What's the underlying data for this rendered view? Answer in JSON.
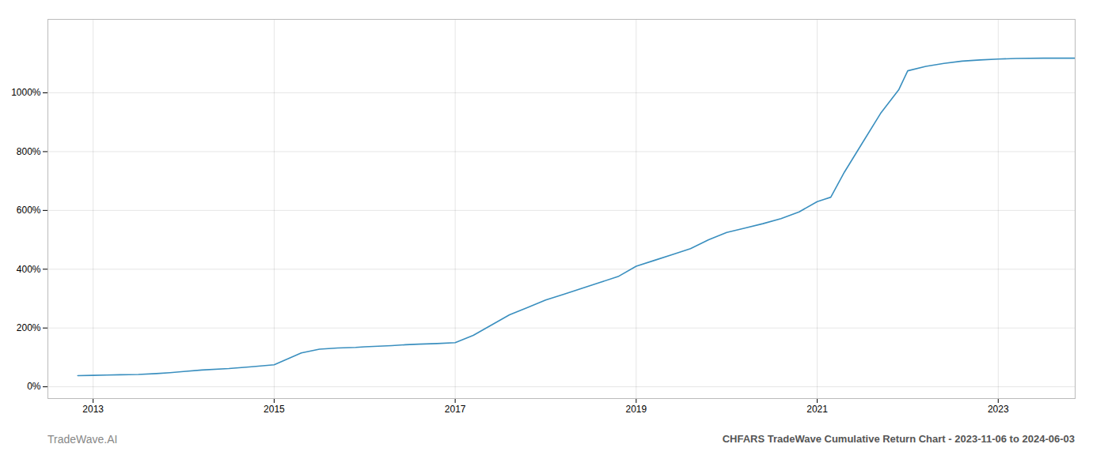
{
  "chart_data": {
    "type": "line",
    "title": "CHFARS TradeWave Cumulative Return Chart - 2023-11-06 to 2024-06-03",
    "annotations": [
      "TradeWave.AI"
    ],
    "color": "#3a8fbf",
    "grid": true,
    "xlim": [
      2012.5,
      2023.85
    ],
    "xticks": [
      2013,
      2015,
      2017,
      2019,
      2021,
      2023
    ],
    "ylim": [
      -40,
      1250
    ],
    "yticks": [
      {
        "value": 0,
        "label": "0%"
      },
      {
        "value": 200,
        "label": "200%"
      },
      {
        "value": 400,
        "label": "400%"
      },
      {
        "value": 600,
        "label": "600%"
      },
      {
        "value": 800,
        "label": "800%"
      },
      {
        "value": 1000,
        "label": "1000%"
      }
    ],
    "x": [
      2012.83,
      2013.0,
      2013.15,
      2013.3,
      2013.5,
      2013.7,
      2013.85,
      2014.0,
      2014.2,
      2014.5,
      2014.75,
      2015.0,
      2015.15,
      2015.3,
      2015.5,
      2015.7,
      2015.9,
      2016.0,
      2016.15,
      2016.3,
      2016.45,
      2016.6,
      2016.8,
      2017.0,
      2017.2,
      2017.4,
      2017.6,
      2017.8,
      2018.0,
      2018.2,
      2018.4,
      2018.6,
      2018.8,
      2019.0,
      2019.2,
      2019.4,
      2019.6,
      2019.8,
      2020.0,
      2020.2,
      2020.4,
      2020.6,
      2020.8,
      2021.0,
      2021.08,
      2021.15,
      2021.3,
      2021.5,
      2021.7,
      2021.9,
      2022.0,
      2022.2,
      2022.4,
      2022.6,
      2022.8,
      2023.0,
      2023.2,
      2023.5,
      2023.85
    ],
    "values": [
      38,
      39,
      40,
      41,
      42,
      45,
      48,
      52,
      57,
      62,
      68,
      75,
      95,
      115,
      128,
      132,
      134,
      136,
      138,
      140,
      143,
      145,
      147,
      150,
      175,
      210,
      245,
      270,
      295,
      315,
      335,
      355,
      375,
      410,
      430,
      450,
      470,
      500,
      525,
      540,
      555,
      572,
      595,
      630,
      638,
      645,
      730,
      830,
      930,
      1010,
      1075,
      1090,
      1100,
      1108,
      1112,
      1115,
      1117,
      1118,
      1118
    ]
  }
}
